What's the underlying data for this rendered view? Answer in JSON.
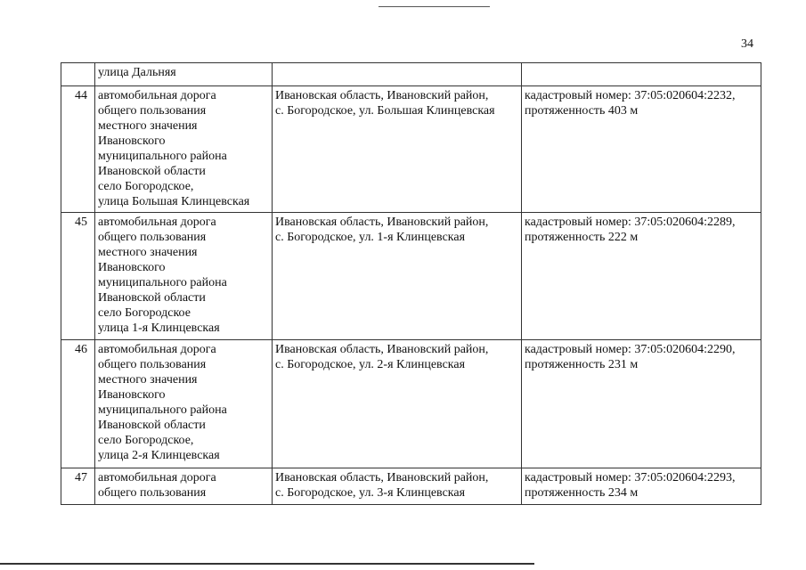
{
  "page_number": "34",
  "rows": [
    {
      "num": "",
      "name": "улица Дальняя",
      "address": "",
      "info": ""
    },
    {
      "num": "44",
      "name": "автомобильная дорога\nобщего пользования\nместного значения\nИвановского\nмуниципального района\nИвановской области\nсело Богородское,\nулица Большая Клинцевская",
      "address": "Ивановская область, Ивановский район,\nс. Богородское, ул. Большая Клинцевская",
      "info": "кадастровый номер: 37:05:020604:2232,\nпротяженность 403 м"
    },
    {
      "num": "45",
      "name": "автомобильная дорога\nобщего пользования\nместного значения\nИвановского\nмуниципального района\nИвановской области\nсело Богородское\nулица 1-я Клинцевская",
      "address": "Ивановская область, Ивановский район,\nс. Богородское, ул. 1-я Клинцевская",
      "info": "кадастровый номер: 37:05:020604:2289,\nпротяженность 222 м"
    },
    {
      "num": "46",
      "name": "автомобильная дорога\nобщего пользования\nместного значения\nИвановского\nмуниципального района\nИвановской области\nсело Богородское,\nулица 2-я Клинцевская",
      "address": "Ивановская область, Ивановский район,\nс. Богородское, ул. 2-я Клинцевская",
      "info": "кадастровый номер: 37:05:020604:2290,\nпротяженность 231 м"
    },
    {
      "num": "47",
      "name": "автомобильная дорога\nобщего пользования",
      "address": "Ивановская область, Ивановский район,\nс. Богородское, ул. 3-я Клинцевская",
      "info": "кадастровый номер: 37:05:020604:2293,\nпротяженность 234 м"
    }
  ]
}
